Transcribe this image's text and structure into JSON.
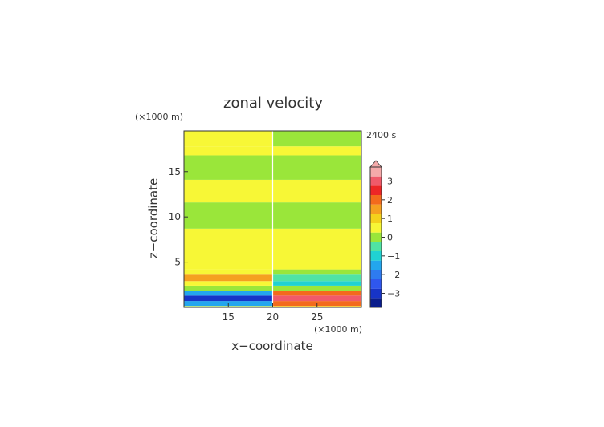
{
  "chart_data": {
    "type": "heatmap",
    "title": "zonal velocity",
    "time_label": "2400 s",
    "xlabel": "x−coordinate",
    "ylabel": "z−coordinate",
    "x_unit": "(×1000 m)",
    "y_unit": "(×1000 m)",
    "xlim": [
      10,
      30
    ],
    "ylim": [
      0,
      19.5
    ],
    "x_ticks": [
      15,
      20,
      25
    ],
    "y_ticks": [
      5,
      10,
      15
    ],
    "colorbar": {
      "tick_values": [
        3,
        2,
        1,
        0,
        -1,
        -2,
        -3
      ],
      "tick_labels": [
        "3",
        "2",
        "1",
        "0",
        "−1",
        "−2",
        "−3"
      ],
      "levels": [
        {
          "value": -3.5,
          "color": "#0a1d8c"
        },
        {
          "value": -3.0,
          "color": "#1734c8"
        },
        {
          "value": -2.5,
          "color": "#2f57ee"
        },
        {
          "value": -2.0,
          "color": "#2e7bf0"
        },
        {
          "value": -1.5,
          "color": "#23a6ee"
        },
        {
          "value": -1.0,
          "color": "#20d2d2"
        },
        {
          "value": -0.5,
          "color": "#50e3a4"
        },
        {
          "value": 0.0,
          "color": "#9ae63a"
        },
        {
          "value": 0.5,
          "color": "#f7f736"
        },
        {
          "value": 1.0,
          "color": "#f4d21c"
        },
        {
          "value": 1.5,
          "color": "#f5a020"
        },
        {
          "value": 2.0,
          "color": "#f36a1c"
        },
        {
          "value": 2.5,
          "color": "#ed2626"
        },
        {
          "value": 3.0,
          "color": "#f05a6a"
        },
        {
          "value": 3.5,
          "color": "#f5aaaa"
        }
      ]
    },
    "bands": [
      {
        "z0": 0.0,
        "z1": 0.15,
        "left": 0.5,
        "right": 0.5
      },
      {
        "z0": 0.15,
        "z1": 0.7,
        "left": -1.5,
        "right": 2.0
      },
      {
        "z0": 0.7,
        "z1": 1.3,
        "left": -3.0,
        "right": 3.0
      },
      {
        "z0": 1.3,
        "z1": 1.8,
        "left": -1.5,
        "right": 2.0
      },
      {
        "z0": 1.8,
        "z1": 2.4,
        "left": 0.0,
        "right": 0.0
      },
      {
        "z0": 2.4,
        "z1": 2.9,
        "left": 0.5,
        "right": -1.0
      },
      {
        "z0": 2.9,
        "z1": 3.7,
        "left": 1.5,
        "right": -0.5
      },
      {
        "z0": 3.7,
        "z1": 4.2,
        "left": 0.5,
        "right": 0.0
      },
      {
        "z0": 4.2,
        "z1": 8.7,
        "left": 0.5,
        "right": 0.5
      },
      {
        "z0": 8.7,
        "z1": 11.6,
        "left": 0.0,
        "right": 0.0
      },
      {
        "z0": 11.6,
        "z1": 14.1,
        "left": 0.5,
        "right": 0.5
      },
      {
        "z0": 14.1,
        "z1": 16.8,
        "left": 0.0,
        "right": 0.0
      },
      {
        "z0": 16.8,
        "z1": 17.8,
        "left": 0.5,
        "right": 0.5
      },
      {
        "z0": 17.8,
        "z1": 19.5,
        "left": 0.5,
        "right": 0.0
      }
    ]
  }
}
